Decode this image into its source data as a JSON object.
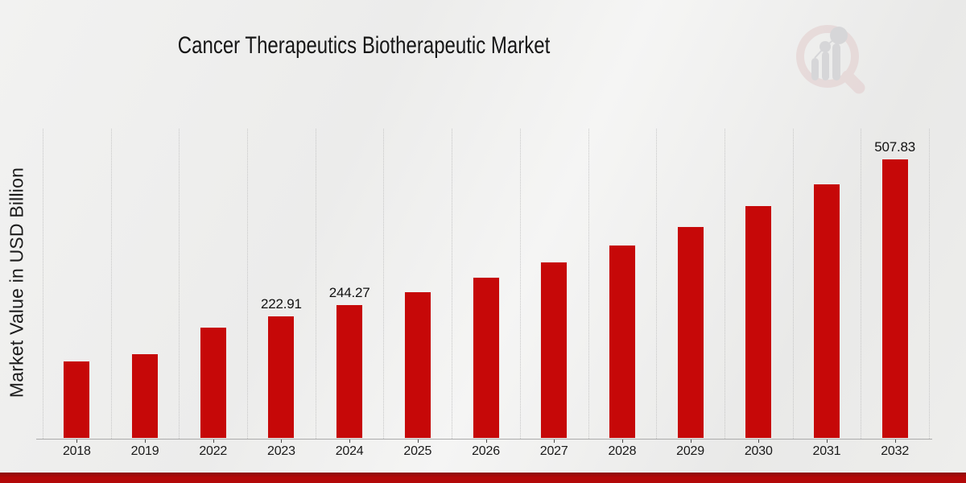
{
  "page": {
    "title": "Cancer Therapeutics Biotherapeutic Market"
  },
  "chart_data": {
    "type": "bar",
    "title": "Cancer Therapeutics Biotherapeutic Market",
    "xlabel": "",
    "ylabel": "Market Value in USD Billion",
    "categories": [
      "2018",
      "2019",
      "2022",
      "2023",
      "2024",
      "2025",
      "2026",
      "2027",
      "2028",
      "2029",
      "2030",
      "2031",
      "2032"
    ],
    "values": [
      141.05,
      154.56,
      203.42,
      222.91,
      244.27,
      267.68,
      293.32,
      321.42,
      352.21,
      385.95,
      422.92,
      463.43,
      507.83
    ],
    "bar_labels": [
      "",
      "",
      "",
      "222.91",
      "244.27",
      "",
      "",
      "",
      "",
      "",
      "",
      "",
      "507.83"
    ],
    "ylim": [
      0,
      562
    ],
    "grid": "vertical-dotted",
    "legend": "none",
    "bar_color": "#c60808"
  },
  "watermark": {
    "icon": "magnifier-bar-chart-logo"
  },
  "footer": {
    "accent_band_color": "#b30808"
  }
}
